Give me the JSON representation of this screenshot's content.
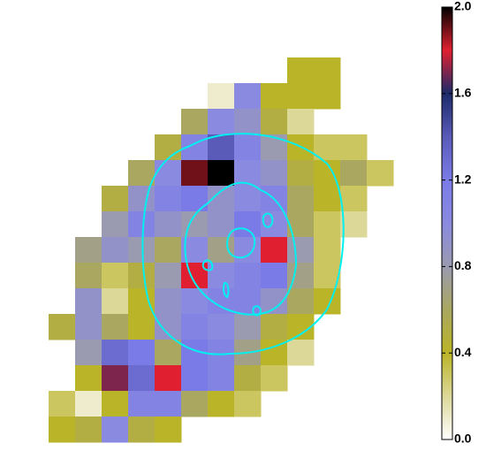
{
  "chart_data": {
    "type": "image",
    "z": [
      [
        null,
        null,
        null,
        null,
        null,
        null,
        null,
        null,
        null,
        0.4,
        0.4,
        null,
        null
      ],
      [
        null,
        null,
        null,
        null,
        null,
        null,
        0.1,
        1.0,
        0.4,
        0.4,
        0.4,
        null,
        null
      ],
      [
        null,
        null,
        null,
        null,
        null,
        0.6,
        1.0,
        0.9,
        0.5,
        0.2,
        null,
        null,
        null
      ],
      [
        null,
        null,
        null,
        null,
        0.5,
        1.1,
        1.4,
        1.1,
        0.8,
        0.4,
        0.3,
        0.3,
        null
      ],
      [
        null,
        null,
        null,
        0.6,
        1.0,
        1.9,
        2.0,
        1.0,
        0.9,
        0.5,
        0.4,
        0.6,
        0.3
      ],
      [
        null,
        null,
        0.5,
        0.9,
        1.1,
        1.2,
        0.9,
        1.0,
        1.1,
        0.6,
        0.4,
        0.3,
        null
      ],
      [
        null,
        null,
        0.8,
        1.1,
        0.9,
        0.8,
        0.9,
        1.2,
        1.0,
        0.6,
        0.3,
        0.2,
        null
      ],
      [
        null,
        0.7,
        0.9,
        0.8,
        0.6,
        1.0,
        0.7,
        1.0,
        1.8,
        0.8,
        0.3,
        null,
        null
      ],
      [
        null,
        0.6,
        0.3,
        0.5,
        0.8,
        1.8,
        1.0,
        1.1,
        1.2,
        0.7,
        0.3,
        null,
        null
      ],
      [
        null,
        0.9,
        0.2,
        0.4,
        0.9,
        1.0,
        1.1,
        1.1,
        0.9,
        0.6,
        0.4,
        null,
        null
      ],
      [
        0.5,
        0.9,
        0.6,
        0.4,
        0.9,
        1.1,
        1.0,
        0.8,
        0.5,
        0.4,
        null,
        null,
        null
      ],
      [
        null,
        0.8,
        1.3,
        1.2,
        0.6,
        1.2,
        1.1,
        0.7,
        0.4,
        0.2,
        null,
        null,
        null
      ],
      [
        null,
        0.4,
        1.7,
        1.3,
        1.8,
        1.2,
        1.1,
        0.5,
        0.3,
        null,
        null,
        null,
        null
      ],
      [
        0.3,
        0.1,
        0.4,
        1.1,
        1.1,
        0.6,
        0.4,
        0.3,
        null,
        null,
        null,
        null,
        null
      ],
      [
        0.4,
        0.5,
        1.0,
        0.5,
        0.4,
        null,
        null,
        null,
        null,
        null,
        null,
        null,
        null
      ]
    ],
    "zlim": [
      0,
      2
    ],
    "colormap": [
      "#ffffff",
      "#dcd898",
      "#bab428",
      "#aaa860",
      "#9a9ab0",
      "#8a8ae0",
      "#7b7be8",
      "#5a5ab8",
      "#1c2a6a",
      "#e02030",
      "#000000"
    ],
    "colorbar_ticks": [
      {
        "value": 0,
        "label": "0.0"
      },
      {
        "value": 0.4,
        "label": "0.4"
      },
      {
        "value": 0.8,
        "label": "0.8"
      },
      {
        "value": 1.2,
        "label": "1.2"
      },
      {
        "value": 1.6,
        "label": "1.6"
      },
      {
        "value": 2,
        "label": "2.0"
      }
    ]
  }
}
